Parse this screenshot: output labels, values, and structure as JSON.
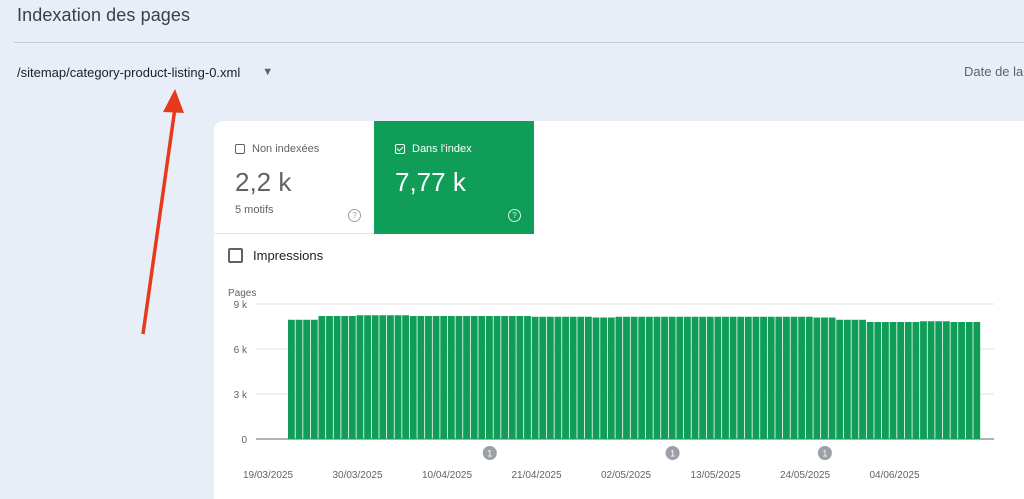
{
  "page": {
    "title": "Indexation des pages"
  },
  "sitemap": {
    "selected": "/sitemap/category-product-listing-0.xml",
    "caret": "▼"
  },
  "date_label": "Date de la",
  "metrics": {
    "not_indexed": {
      "label": "Non indexées",
      "value": "2,2 k",
      "sub": "5 motifs",
      "help": "?"
    },
    "indexed": {
      "label": "Dans l'index",
      "value": "7,77 k",
      "help": "?"
    }
  },
  "impressions": {
    "label": "Impressions"
  },
  "colors": {
    "accent_green": "#0f9d58",
    "arrow_red": "#e8391e"
  },
  "chart_data": {
    "type": "bar",
    "ylabel": "Pages",
    "ylim": [
      0,
      9000
    ],
    "yticks": [
      "0",
      "3 k",
      "6 k",
      "9 k"
    ],
    "ytick_values": [
      0,
      3000,
      6000,
      9000
    ],
    "xticks": [
      "19/03/2025",
      "30/03/2025",
      "10/04/2025",
      "21/04/2025",
      "02/05/2025",
      "13/05/2025",
      "24/05/2025",
      "04/06/2025"
    ],
    "annotations": [
      {
        "index": 26,
        "label": "1"
      },
      {
        "index": 50,
        "label": "1"
      },
      {
        "index": 70,
        "label": "1"
      }
    ],
    "values": [
      7950,
      7950,
      7950,
      7950,
      8200,
      8200,
      8200,
      8200,
      8200,
      8250,
      8250,
      8250,
      8250,
      8250,
      8250,
      8250,
      8200,
      8200,
      8200,
      8200,
      8200,
      8200,
      8200,
      8200,
      8200,
      8200,
      8200,
      8200,
      8200,
      8200,
      8200,
      8200,
      8150,
      8150,
      8150,
      8150,
      8150,
      8150,
      8150,
      8150,
      8100,
      8100,
      8100,
      8150,
      8150,
      8150,
      8150,
      8150,
      8150,
      8150,
      8150,
      8150,
      8150,
      8150,
      8150,
      8150,
      8150,
      8150,
      8150,
      8150,
      8150,
      8150,
      8150,
      8150,
      8150,
      8150,
      8150,
      8150,
      8150,
      8100,
      8100,
      8100,
      7950,
      7950,
      7950,
      7950,
      7800,
      7800,
      7800,
      7800,
      7800,
      7800,
      7800,
      7850,
      7850,
      7850,
      7850,
      7800,
      7800,
      7800,
      7800
    ]
  }
}
